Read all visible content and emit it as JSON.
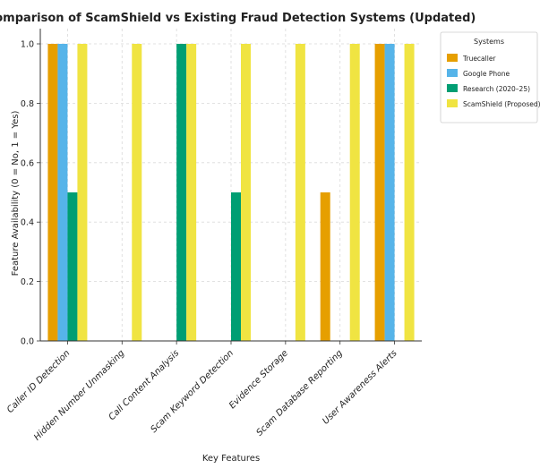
{
  "chart_data": {
    "type": "bar",
    "title": "Comparison of ScamShield vs Existing Fraud Detection Systems (Updated)",
    "xlabel": "Key Features",
    "ylabel": "Feature Availability (0 = No, 1 = Yes)",
    "ylim": [
      0,
      1.0
    ],
    "yticks": [
      "0.0",
      "0.2",
      "0.4",
      "0.6",
      "0.8",
      "1.0"
    ],
    "grid": true,
    "legend_title": "Systems",
    "legend_position": "outside-top-right",
    "categories": [
      "Caller ID Detection",
      "Hidden Number Unmasking",
      "Call Content Analysis",
      "Scam Keyword Detection",
      "Evidence Storage",
      "Scam Database Reporting",
      "User Awareness Alerts"
    ],
    "series": [
      {
        "name": "Truecaller",
        "color": "#E69F00",
        "values": [
          1,
          0,
          0,
          0,
          0,
          0.5,
          1
        ]
      },
      {
        "name": "Google Phone",
        "color": "#56B4E9",
        "values": [
          1,
          0,
          0,
          0,
          0,
          0,
          1
        ]
      },
      {
        "name": "Research (2020–25)",
        "color": "#009E73",
        "values": [
          0.5,
          0,
          1,
          0.5,
          0,
          0,
          0
        ]
      },
      {
        "name": "ScamShield (Proposed)",
        "color": "#F0E442",
        "values": [
          1,
          1,
          1,
          1,
          1,
          1,
          1
        ]
      }
    ]
  }
}
